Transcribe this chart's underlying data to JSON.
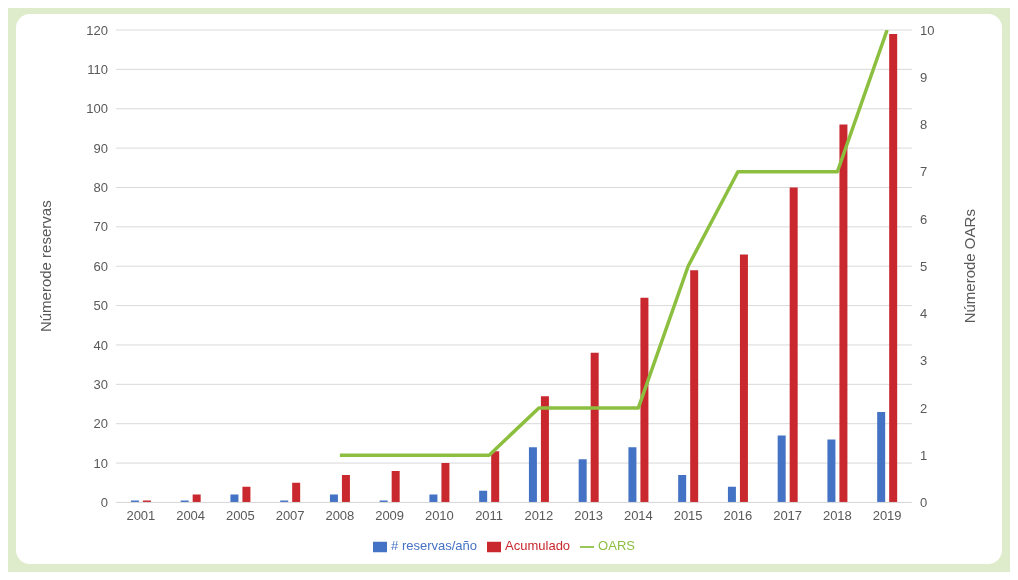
{
  "chart_data": {
    "type": "bar",
    "ylabel": "Númerode reservas",
    "y2label": "Númerode OARs",
    "categories": [
      "2001",
      "2004",
      "2005",
      "2007",
      "2008",
      "2009",
      "2010",
      "2011",
      "2012",
      "2013",
      "2014",
      "2015",
      "2016",
      "2017",
      "2018",
      "2019"
    ],
    "series": [
      {
        "name": "# reservas/año",
        "color": "#4472c4",
        "values": [
          0.5,
          0.5,
          2,
          0.5,
          2,
          0.5,
          2,
          3,
          14,
          11,
          14,
          7,
          4,
          17,
          16,
          23
        ]
      },
      {
        "name": "Acumulado",
        "color": "#c8282e",
        "values": [
          0.5,
          2,
          4,
          5,
          7,
          8,
          10,
          13,
          27,
          38,
          52,
          59,
          63,
          80,
          96,
          119
        ]
      },
      {
        "name": "OARS",
        "type": "line",
        "axis": "y2",
        "color": "#8cbf3f",
        "values": [
          null,
          null,
          null,
          null,
          1,
          1,
          1,
          1,
          2,
          2,
          2,
          5,
          7,
          7,
          7,
          10
        ]
      }
    ],
    "ylim": [
      0,
      120
    ],
    "yticks": [
      0,
      10,
      20,
      30,
      40,
      50,
      60,
      70,
      80,
      90,
      100,
      110,
      120
    ],
    "y2lim": [
      0,
      10
    ],
    "y2ticks": [
      0,
      1,
      2,
      3,
      4,
      5,
      6,
      7,
      8,
      9,
      10
    ],
    "grid": "y",
    "legend": "bottom",
    "marker": "none",
    "line_style": "solid"
  }
}
